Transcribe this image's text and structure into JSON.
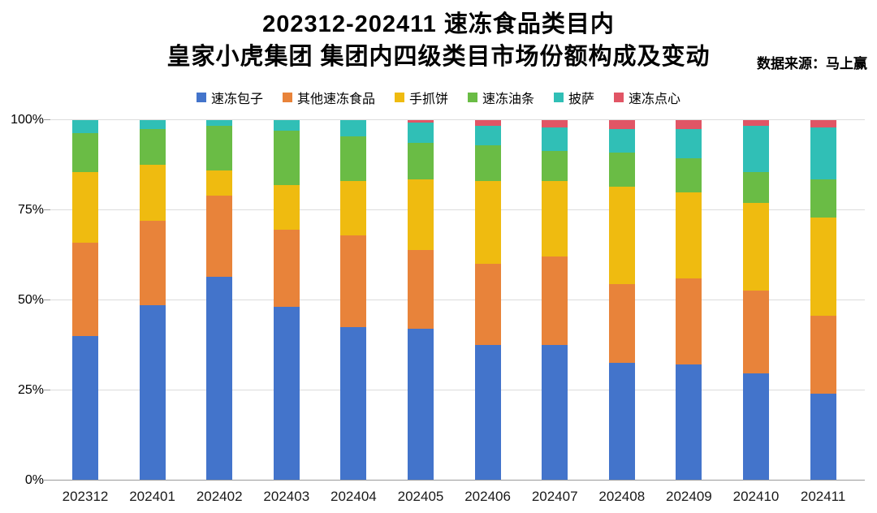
{
  "header": {
    "title_line1": "202312-202411 速冻食品类目内",
    "title_line2": "皇家小虎集团 集团内四级类目市场份额构成及变动",
    "source_note": "数据来源：马上赢"
  },
  "chart_data": {
    "type": "bar",
    "stacked": true,
    "unit": "percent",
    "title": "202312-202411 速冻食品类目内 皇家小虎集团 集团内四级类目市场份额构成及变动",
    "xlabel": "",
    "ylabel": "",
    "ylim": [
      0,
      100
    ],
    "y_ticks": [
      "0%",
      "25%",
      "50%",
      "75%",
      "100%"
    ],
    "grid": true,
    "legend_position": "top",
    "categories": [
      "202312",
      "202401",
      "202402",
      "202403",
      "202404",
      "202405",
      "202406",
      "202407",
      "202408",
      "202409",
      "202410",
      "202411"
    ],
    "series": [
      {
        "name": "速冻包子",
        "color": "#4374CB",
        "values": [
          40,
          48.5,
          56.5,
          48,
          42.5,
          42,
          37.5,
          37.5,
          32.5,
          32,
          29.5,
          24
        ]
      },
      {
        "name": "其他速冻食品",
        "color": "#E8833A",
        "values": [
          26,
          23.5,
          22.5,
          21.5,
          25.5,
          22,
          22.5,
          24.5,
          22,
          24,
          23,
          21.5
        ]
      },
      {
        "name": "手抓饼",
        "color": "#EFBB10",
        "values": [
          19.5,
          15.5,
          7,
          12.5,
          15,
          19.5,
          23,
          21,
          27,
          24,
          24.5,
          27.5
        ]
      },
      {
        "name": "速冻油条",
        "color": "#6ABC45",
        "values": [
          11,
          10,
          12.5,
          15,
          12.5,
          10.3,
          10,
          8.5,
          9.5,
          9.5,
          8.5,
          10.5
        ]
      },
      {
        "name": "披萨",
        "color": "#30BFB6",
        "values": [
          3.5,
          2.5,
          1.5,
          3,
          4.5,
          5.5,
          5.5,
          6.5,
          6.5,
          8,
          13,
          14.5
        ]
      },
      {
        "name": "速冻点心",
        "color": "#E15565",
        "values": [
          0,
          0,
          0,
          0,
          0,
          0.7,
          1.5,
          2,
          2.5,
          2.5,
          1.5,
          2
        ]
      }
    ]
  }
}
